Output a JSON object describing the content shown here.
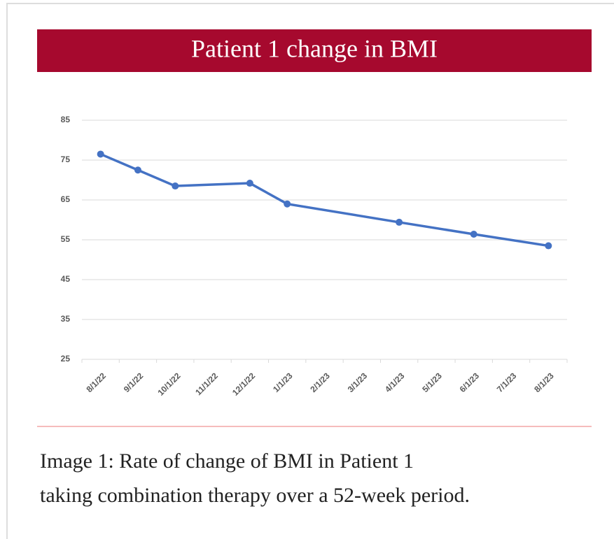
{
  "chart_data": {
    "type": "line",
    "title": "Patient 1 change in BMI",
    "xticks": [
      "8/1/22",
      "9/1/22",
      "10/1/22",
      "11/1/22",
      "12/1/22",
      "1/1/23",
      "2/1/23",
      "3/1/23",
      "4/1/23",
      "5/1/23",
      "6/1/23",
      "7/1/23",
      "8/1/23"
    ],
    "x": [
      "8/1/22",
      "9/1/22",
      "10/1/22",
      "12/1/22",
      "1/1/23",
      "4/1/23",
      "6/1/23",
      "8/1/23"
    ],
    "values": [
      76.5,
      72.5,
      68.5,
      69.2,
      64.0,
      59.4,
      56.4,
      53.5
    ],
    "color": "#4472c4",
    "ylim": [
      25,
      85
    ],
    "yticks": [
      25,
      35,
      45,
      55,
      65,
      75,
      85
    ],
    "grid": true
  },
  "caption": [
    "Image 1: Rate of  change of  BMI in Patient 1",
    "taking combination therapy over a 52-week period."
  ]
}
